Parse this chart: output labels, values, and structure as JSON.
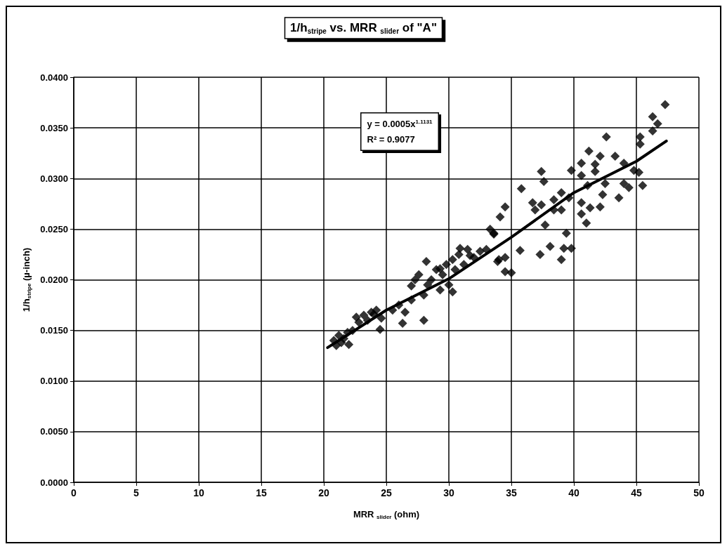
{
  "chart_data": {
    "type": "scatter",
    "title": "1/h$_{stripe}$ vs. MRR $_{slider}$ of \"A\"",
    "xlabel": "MRR $_{slider}$ (ohm)",
    "ylabel": "1/h$_{stripe}$ (µ-inch)",
    "annotations": [
      "y = 0.0005x$^{1.1131}$",
      "R² = 0.9077"
    ],
    "xlim": [
      0,
      50
    ],
    "xticks": [
      0,
      5,
      10,
      15,
      20,
      25,
      30,
      35,
      40,
      45,
      50
    ],
    "ylim": [
      0,
      0.04
    ],
    "yticks": [
      {
        "value": 0,
        "label": "0.0000"
      },
      {
        "value": 0.005,
        "label": "0.0050"
      },
      {
        "value": 0.01,
        "label": "0.0100"
      },
      {
        "value": 0.015,
        "label": "0.0150"
      },
      {
        "value": 0.02,
        "label": "0.0200"
      },
      {
        "value": 0.025,
        "label": "0.0250"
      },
      {
        "value": 0.03,
        "label": "0.0300"
      },
      {
        "value": 0.035,
        "label": "0.0350"
      },
      {
        "value": 0.04,
        "label": "0.0400"
      }
    ],
    "grid": true,
    "marker": "diamond",
    "series": [
      {
        "color": "#000000",
        "x": [
          20.8,
          21.0,
          21.2,
          21.4,
          21.6,
          21.9,
          22.0,
          22.3,
          22.6,
          22.8,
          23.2,
          23.5,
          23.8,
          24.0,
          24.2,
          24.5,
          24.6,
          25.5,
          26.0,
          26.3,
          26.5,
          27.0,
          27.0,
          27.3,
          27.6,
          28.0,
          28.0,
          28.2,
          28.3,
          28.6,
          29.0,
          29.3,
          29.3,
          29.5,
          29.8,
          30.0,
          30.3,
          30.3,
          30.5,
          30.8,
          30.9,
          31.2,
          31.5,
          31.7,
          32.0,
          32.5,
          33.0,
          33.3,
          33.6,
          33.6,
          33.9,
          34.0,
          34.1,
          34.5,
          34.5,
          34.5,
          35.0,
          35.7,
          35.8,
          36.7,
          36.9,
          37.3,
          37.4,
          37.4,
          37.6,
          37.7,
          38.1,
          38.4,
          38.4,
          39.0,
          39.0,
          39.0,
          39.2,
          39.4,
          39.6,
          39.8,
          39.8,
          40.6,
          40.6,
          40.6,
          40.6,
          41.0,
          41.1,
          41.2,
          41.3,
          41.7,
          41.7,
          42.1,
          42.1,
          42.3,
          42.5,
          42.6,
          43.3,
          43.6,
          44.0,
          44.0,
          44.4,
          44.8,
          45.2,
          45.3,
          45.3,
          45.5,
          46.3,
          46.3,
          46.7,
          47.3
        ],
        "values": [
          0.014,
          0.0135,
          0.0145,
          0.0138,
          0.0142,
          0.0148,
          0.0136,
          0.015,
          0.0163,
          0.0158,
          0.0165,
          0.016,
          0.0168,
          0.0166,
          0.017,
          0.0151,
          0.0162,
          0.017,
          0.0175,
          0.0157,
          0.0168,
          0.018,
          0.0194,
          0.02,
          0.0205,
          0.0185,
          0.016,
          0.0218,
          0.0195,
          0.02,
          0.021,
          0.019,
          0.0211,
          0.0205,
          0.0215,
          0.0195,
          0.022,
          0.0188,
          0.021,
          0.0225,
          0.0231,
          0.0215,
          0.023,
          0.0224,
          0.0222,
          0.0228,
          0.023,
          0.025,
          0.0245,
          0.0246,
          0.0218,
          0.022,
          0.0262,
          0.0208,
          0.0272,
          0.0222,
          0.0207,
          0.0229,
          0.029,
          0.0276,
          0.0269,
          0.0225,
          0.0307,
          0.0274,
          0.0297,
          0.0254,
          0.0233,
          0.0279,
          0.0269,
          0.0286,
          0.0269,
          0.022,
          0.0231,
          0.0246,
          0.0281,
          0.0308,
          0.0231,
          0.0315,
          0.0303,
          0.0276,
          0.0265,
          0.0256,
          0.0293,
          0.0327,
          0.0271,
          0.0314,
          0.0307,
          0.0322,
          0.0272,
          0.0284,
          0.0295,
          0.0341,
          0.0322,
          0.0281,
          0.0315,
          0.0295,
          0.0291,
          0.0308,
          0.0306,
          0.0341,
          0.0334,
          0.0293,
          0.0361,
          0.0347,
          0.0354,
          0.0373
        ]
      },
      {
        "type": "line",
        "color": "#000000",
        "marker": "none",
        "x": [
          20.3,
          25,
          30,
          35,
          40,
          45,
          47.4
        ],
        "values": [
          0.0133,
          0.017,
          0.0201,
          0.0242,
          0.0286,
          0.0317,
          0.0337
        ]
      }
    ]
  }
}
